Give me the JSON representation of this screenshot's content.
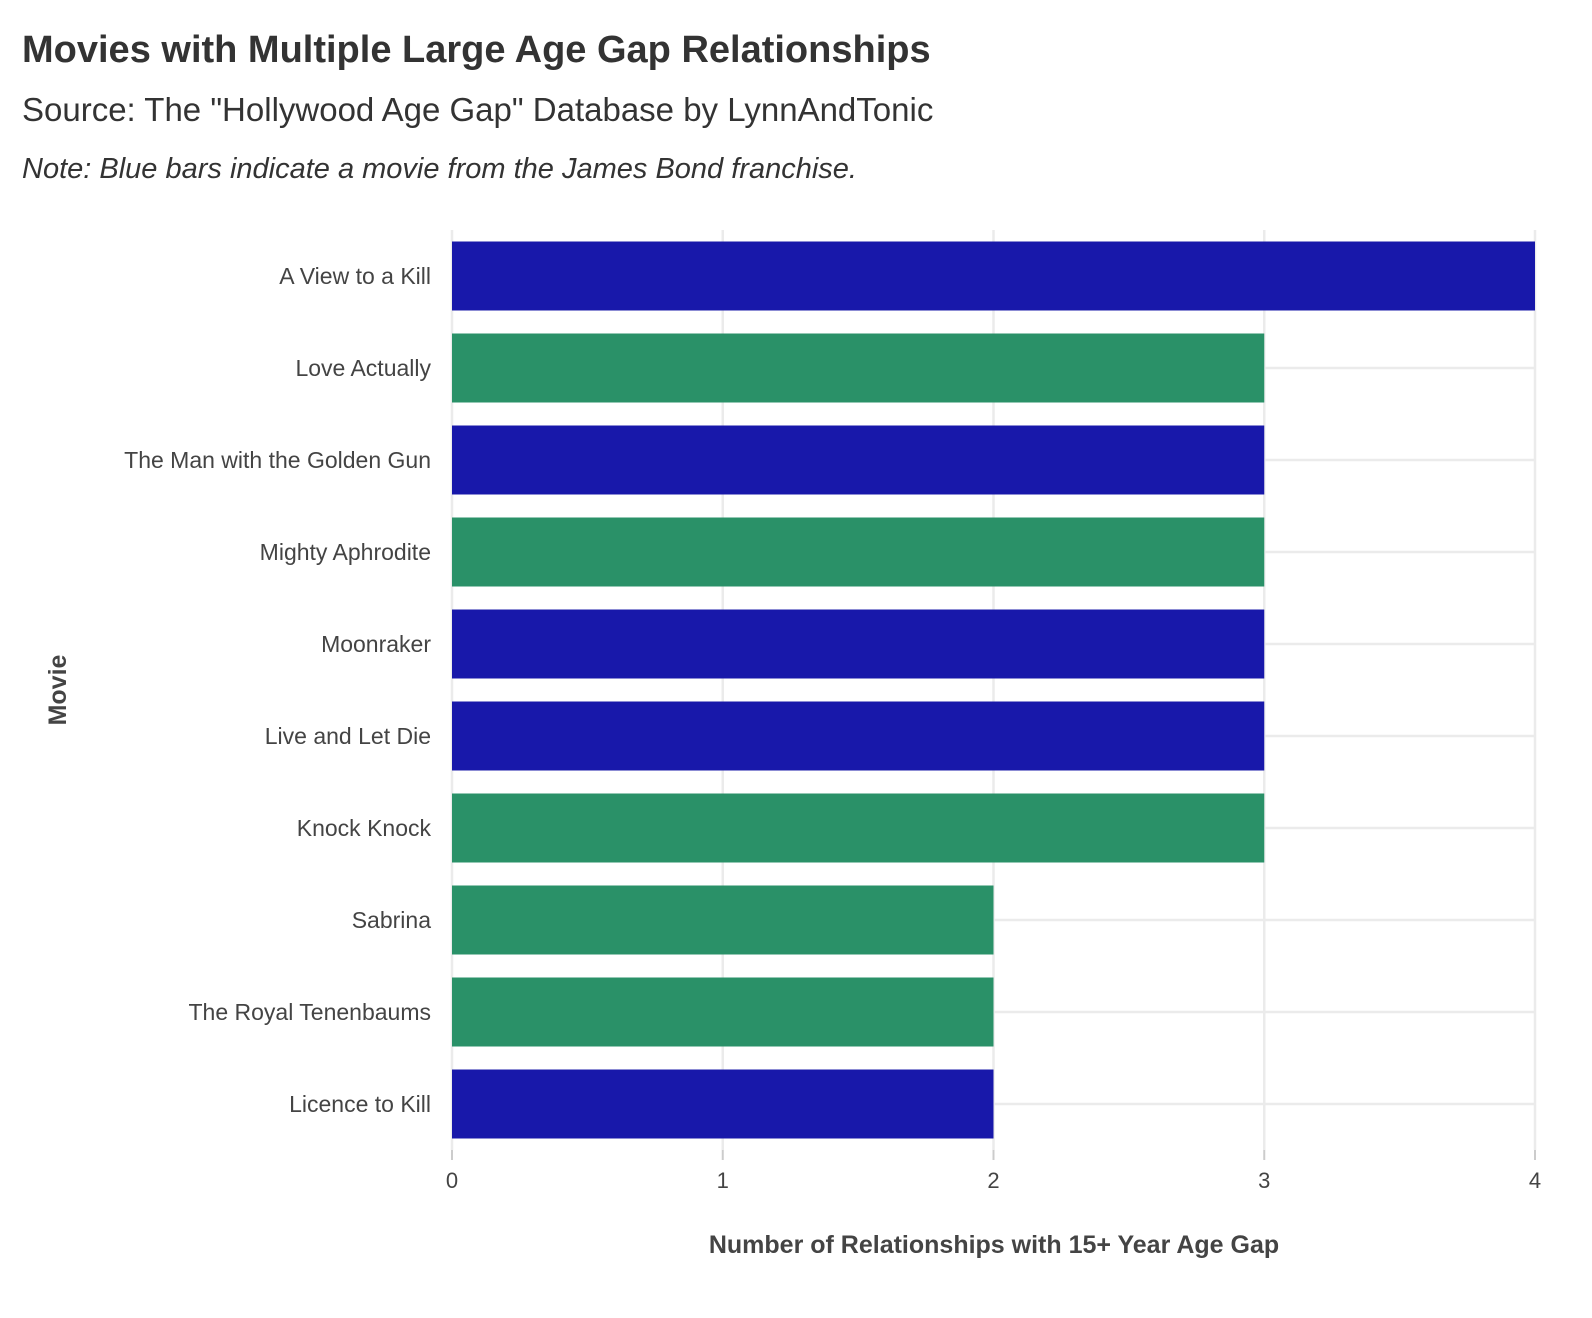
{
  "chart_data": {
    "type": "bar",
    "orientation": "horizontal",
    "title": "Movies with Multiple Large Age Gap Relationships",
    "subtitle": "Source: The \"Hollywood Age Gap\" Database by LynnAndTonic",
    "note": "Note: Blue bars indicate a movie from the James Bond franchise.",
    "xlabel": "Number of Relationships with 15+ Year Age Gap",
    "ylabel": "Movie",
    "xlim": [
      0,
      4
    ],
    "xticks": [
      0,
      1,
      2,
      3,
      4
    ],
    "grid": true,
    "colors": {
      "bond": "#1818aa",
      "other": "#2a9168"
    },
    "categories": [
      "A View to a Kill",
      "Love Actually",
      "The Man with the Golden Gun",
      "Mighty Aphrodite",
      "Moonraker",
      "Live and Let Die",
      "Knock Knock",
      "Sabrina",
      "The Royal Tenenbaums",
      "Licence to Kill"
    ],
    "values": [
      4,
      3,
      3,
      3,
      3,
      3,
      3,
      2,
      2,
      2
    ],
    "bond": [
      true,
      false,
      true,
      false,
      true,
      true,
      false,
      false,
      false,
      true
    ]
  }
}
